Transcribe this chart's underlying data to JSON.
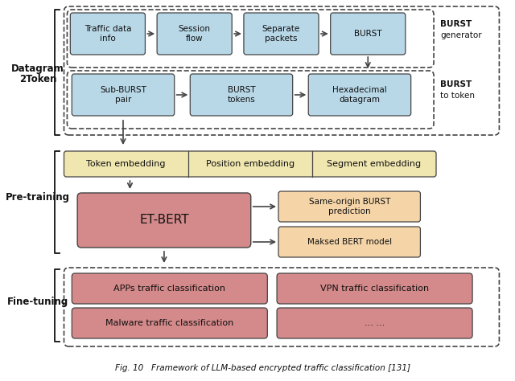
{
  "title": "Fig. 10   Framework of LLM-based encrypted traffic classification [131]",
  "bg_color": "#ffffff",
  "light_blue": "#b8d8e8",
  "light_yellow": "#f0e6b0",
  "light_pink": "#d4898a",
  "light_peach": "#f5d5a8",
  "outline_color": "#444444",
  "text_color": "#111111",
  "row1_boxes": [
    "Traffic data\ninfo",
    "Session\nflow",
    "Separate\npackets",
    "BURST"
  ],
  "row2_boxes": [
    "Sub-BURST\npair",
    "BURST\ntokens",
    "Hexadecimal\ndatagram"
  ],
  "emb_boxes": [
    "Token embedding",
    "Position embedding",
    "Segment embedding"
  ],
  "right_boxes": [
    "Same-origin BURST\nprediction",
    "Maksed BERT model"
  ],
  "ft_boxes_row1": [
    "APPs traffic classification",
    "VPN traffic classification"
  ],
  "ft_boxes_row2": [
    "Malware traffic classification",
    "... ..."
  ],
  "label_datagram": "Datagram\n2Token",
  "label_pretraining": "Pre-training",
  "label_finetuning": "Fine-tuning",
  "burst_gen_label": "BURST\ngenerator",
  "burst_tok_label": "BURST\nto token",
  "etbert_label": "ET-BERT"
}
